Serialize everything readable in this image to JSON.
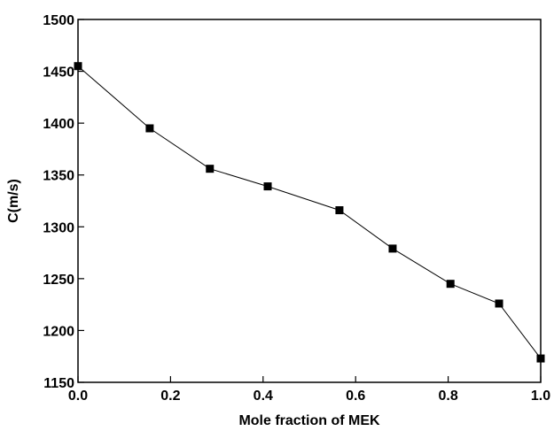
{
  "chart_data": {
    "type": "line",
    "xlabel": "Mole fraction of MEK",
    "ylabel": "C(m/s)",
    "xlim": [
      0.0,
      1.0
    ],
    "ylim": [
      1150,
      1500
    ],
    "xticks": [
      "0.0",
      "0.2",
      "0.4",
      "0.6",
      "0.8",
      "1.0"
    ],
    "yticks": [
      "1150",
      "1200",
      "1250",
      "1300",
      "1350",
      "1400",
      "1450",
      "1500"
    ],
    "grid": false,
    "marker": "square",
    "line_color": "#000000",
    "series": [
      {
        "x": [
          0.0,
          0.155,
          0.285,
          0.41,
          0.565,
          0.68,
          0.805,
          0.91,
          1.0
        ],
        "y": [
          1455,
          1395,
          1356,
          1339,
          1316,
          1279,
          1245,
          1226,
          1173
        ]
      }
    ]
  }
}
